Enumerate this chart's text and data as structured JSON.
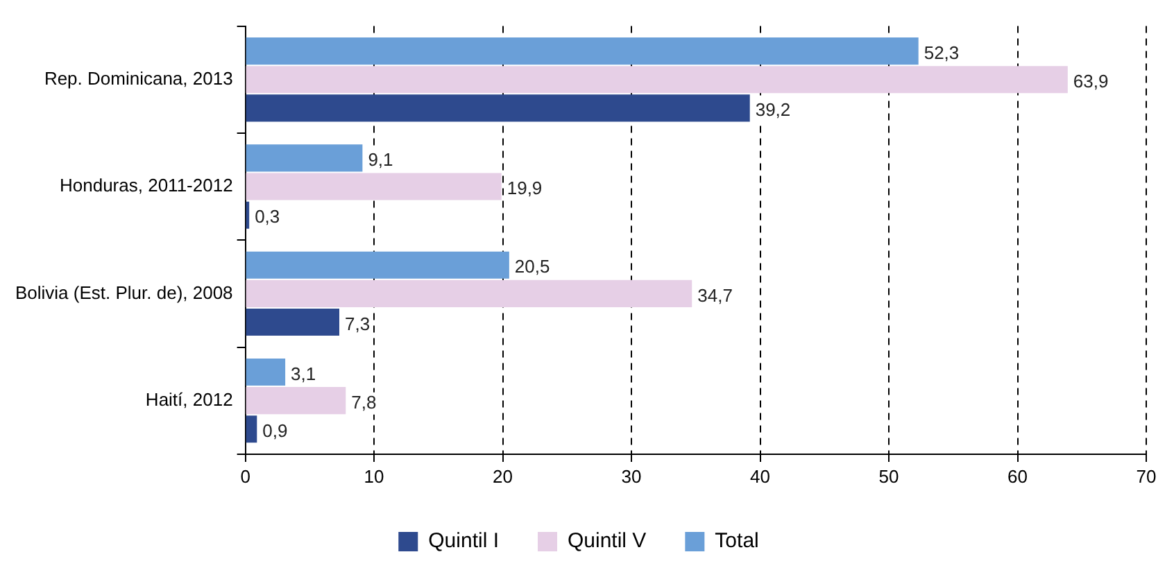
{
  "chart_data": {
    "type": "bar",
    "orientation": "horizontal",
    "categories": [
      "Rep. Dominicana, 2013",
      "Honduras, 2011-2012",
      "Bolivia (Est. Plur. de), 2008",
      "Haití, 2012"
    ],
    "series": [
      {
        "name": "Total",
        "color": "#6a9fd8",
        "values": [
          52.3,
          9.1,
          20.5,
          3.1
        ],
        "value_labels": [
          "52,3",
          "9,1",
          "20,5",
          "3,1"
        ]
      },
      {
        "name": "Quintil V",
        "color": "#e6cfe6",
        "values": [
          63.9,
          19.9,
          34.7,
          7.8
        ],
        "value_labels": [
          "63,9",
          "19,9",
          "34,7",
          "7,8"
        ]
      },
      {
        "name": "Quintil I",
        "color": "#2e4a8e",
        "values": [
          39.2,
          0.3,
          7.3,
          0.9
        ],
        "value_labels": [
          "39,2",
          "0,3",
          "7,3",
          "0,9"
        ]
      }
    ],
    "xlim": [
      0,
      70
    ],
    "xticks": [
      0,
      10,
      20,
      30,
      40,
      50,
      60,
      70
    ],
    "grid": "x",
    "legend": "bottom"
  }
}
